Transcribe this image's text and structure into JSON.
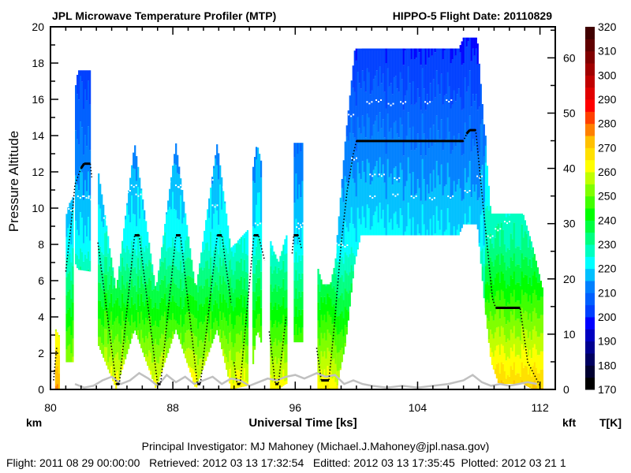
{
  "chart_data": {
    "type": "heatmap",
    "title": "JPL Microwave Temperature Profiler (MTP)",
    "subtitle": "HIPPO-5  Flight Date: 20110829",
    "xlabel": "Universal Time [ks]",
    "ylabel": "Pressure Altitude",
    "y_unit_label": "km",
    "y2_unit_label": "kft",
    "colorbar_label": "T[K]",
    "xlim": [
      80,
      113
    ],
    "ylim": [
      0,
      20
    ],
    "y2lim": [
      0,
      65.6
    ],
    "xticks": [
      "80",
      "88",
      "96",
      "104",
      "112"
    ],
    "yticks": [
      "0",
      "2",
      "4",
      "6",
      "8",
      "10",
      "12",
      "14",
      "16",
      "18",
      "20"
    ],
    "y2ticks": [
      "0",
      "10",
      "20",
      "30",
      "40",
      "50",
      "60"
    ],
    "colorbar": {
      "min": 170,
      "max": 320,
      "step": 5,
      "ticks": [
        "170",
        "180",
        "190",
        "200",
        "210",
        "220",
        "230",
        "240",
        "250",
        "260",
        "270",
        "280",
        "290",
        "300",
        "310",
        "320"
      ],
      "colors": [
        "#000000",
        "#000030",
        "#000060",
        "#000090",
        "#0000c0",
        "#0000ff",
        "#0040ff",
        "#0060ff",
        "#0080ff",
        "#00c0ff",
        "#00ffff",
        "#00ffc0",
        "#00ff80",
        "#00ff40",
        "#00ff00",
        "#40ff00",
        "#80ff00",
        "#c0ff00",
        "#ffff00",
        "#ffe000",
        "#ffc000",
        "#ff8000",
        "#ff4000",
        "#ff0000",
        "#e00000",
        "#c00000",
        "#a00000",
        "#800000",
        "#600000",
        "#400000"
      ]
    },
    "temperature_profile": {
      "altitude_km": [
        0,
        8,
        20
      ],
      "T_K": [
        262,
        222,
        198
      ]
    },
    "curtain_segments": [
      {
        "t": [
          80.3,
          80.55
        ],
        "bottom": [
          0,
          0
        ],
        "top": [
          3.4,
          3.0
        ],
        "T_surface_K": 276
      },
      {
        "t": [
          81.0,
          81.2,
          81.45
        ],
        "bottom": [
          1.5,
          1.5,
          1.5
        ],
        "top": [
          9.5,
          10.2,
          10.6
        ],
        "T_surface_K": 262
      },
      {
        "t": [
          81.6,
          81.8,
          82.6
        ],
        "bottom": [
          7.0,
          6.6,
          6.5
        ],
        "top": [
          16.5,
          17.6,
          17.6
        ],
        "T_surface_K": 262
      },
      {
        "t": [
          83.1,
          84.3,
          85.5,
          86.9,
          88.2,
          89.5,
          90.9,
          91.8
        ],
        "bottom": [
          2.5,
          0,
          3.3,
          0,
          3.3,
          0,
          3.3,
          0
        ],
        "top": [
          12.2,
          5.5,
          13.6,
          5.5,
          13.6,
          5.5,
          13.6,
          7.8
        ],
        "T_surface_K": 264
      },
      {
        "t": [
          91.8,
          92.9
        ],
        "bottom": [
          0,
          0.2
        ],
        "top": [
          7.8,
          8.8
        ],
        "T_surface_K": 264
      },
      {
        "t": [
          93.2,
          93.5,
          93.8
        ],
        "bottom": [
          1.0,
          3.3,
          2.5
        ],
        "top": [
          12.0,
          13.6,
          12.5
        ],
        "T_surface_K": 264
      },
      {
        "t": [
          94.35,
          94.9,
          95.4
        ],
        "bottom": [
          0,
          0,
          0.3
        ],
        "top": [
          8.3,
          7.0,
          8.5
        ],
        "T_surface_K": 264
      },
      {
        "t": [
          95.9,
          96.5
        ],
        "bottom": [
          2.6,
          2.6
        ],
        "top": [
          13.6,
          13.6
        ],
        "T_surface_K": 262
      },
      {
        "t": [
          97.45,
          97.8,
          98.3,
          98.7
        ],
        "bottom": [
          0,
          0,
          0,
          0
        ],
        "top": [
          6.8,
          5.8,
          5.8,
          7.5
        ],
        "T_surface_K": 264
      },
      {
        "t": [
          98.7,
          99.3,
          99.9,
          100.3,
          106.7,
          107.0,
          107.9,
          108.4
        ],
        "bottom": [
          0,
          2.5,
          7.0,
          8.5,
          8.5,
          9.1,
          9.1,
          4.5
        ],
        "top": [
          8.0,
          14.0,
          18.8,
          18.8,
          18.8,
          19.4,
          19.4,
          14.0
        ],
        "T_surface_K": 262
      },
      {
        "t": [
          108.4,
          108.8,
          109.3,
          110.9,
          111.5,
          112.2
        ],
        "bottom": [
          4.5,
          1.5,
          0.3,
          0.3,
          0,
          0
        ],
        "top": [
          14.0,
          9.7,
          9.7,
          9.7,
          8.0,
          5.5
        ],
        "T_surface_K": 270
      }
    ],
    "flight_altitude_km": [
      {
        "t": [
          80.2,
          80.4
        ],
        "km": [
          0.5,
          2.3
        ]
      },
      {
        "t": [
          81.0,
          81.4,
          81.6,
          82.0,
          82.2,
          82.6,
          82.7
        ],
        "km": [
          6.5,
          9.5,
          11.3,
          12.2,
          12.45,
          12.45,
          11.7
        ]
      },
      {
        "t": [
          83.1,
          84.3,
          84.5,
          85.5,
          85.8,
          87.0,
          87.2,
          88.2,
          88.5,
          89.6,
          89.8,
          90.9,
          91.2,
          91.8
        ],
        "km": [
          8.1,
          0.3,
          0.3,
          8.5,
          8.5,
          0.3,
          0.3,
          8.5,
          8.5,
          0.3,
          0.3,
          8.5,
          8.5,
          4.8
        ]
      },
      {
        "t": [
          92.0,
          92.2,
          92.4,
          93.3,
          93.6,
          94.0
        ],
        "km": [
          1.5,
          0.3,
          0.3,
          8.5,
          8.5,
          7.1
        ]
      },
      {
        "t": [
          94.3,
          94.7,
          94.9,
          95.4
        ],
        "km": [
          3.2,
          0.3,
          0.3,
          4.0
        ]
      },
      {
        "t": [
          95.8,
          95.9,
          96.2,
          96.4
        ],
        "km": [
          7.5,
          8.5,
          8.5,
          7.8
        ]
      },
      {
        "t": [
          97.4,
          97.7,
          98.2,
          98.5,
          99.0,
          99.4,
          99.8,
          100.0,
          107.0,
          107.2,
          107.4,
          107.8,
          108.3,
          108.9,
          109.1,
          110.7,
          111.2,
          112.0
        ],
        "km": [
          2.3,
          0.5,
          0.5,
          3.0,
          8.0,
          11.0,
          13.0,
          13.7,
          13.7,
          14.1,
          14.3,
          14.3,
          10.0,
          5.0,
          4.5,
          4.5,
          1.5,
          0.2
        ]
      }
    ],
    "tropopause_points": [
      [
        81.1,
        10.5
      ],
      [
        81.3,
        10.0
      ],
      [
        81.9,
        10.7
      ],
      [
        82.3,
        10.7
      ],
      [
        82.6,
        10.6
      ],
      [
        83.6,
        9.5
      ],
      [
        85.0,
        11.0
      ],
      [
        85.4,
        11.3
      ],
      [
        85.7,
        10.8
      ],
      [
        87.6,
        11.5
      ],
      [
        88.3,
        11.3
      ],
      [
        88.5,
        11.2
      ],
      [
        90.4,
        11.6
      ],
      [
        90.7,
        10.2
      ],
      [
        91.4,
        11.2
      ],
      [
        93.5,
        9.2
      ],
      [
        96.2,
        9.0
      ],
      [
        96.3,
        9.2
      ],
      [
        98.8,
        8.1
      ],
      [
        99.2,
        8.0
      ],
      [
        99.6,
        15.2
      ],
      [
        100.8,
        15.9
      ],
      [
        101.4,
        16.0
      ],
      [
        102.2,
        15.8
      ],
      [
        103.0,
        15.9
      ],
      [
        104.6,
        15.9
      ],
      [
        106.0,
        16.0
      ],
      [
        99.8,
        12.8
      ],
      [
        101.0,
        11.9
      ],
      [
        101.6,
        11.9
      ],
      [
        102.6,
        11.7
      ],
      [
        101.0,
        10.7
      ],
      [
        102.5,
        10.8
      ],
      [
        103.7,
        10.7
      ],
      [
        104.9,
        10.6
      ],
      [
        106.1,
        10.7
      ],
      [
        107.2,
        11.0
      ],
      [
        108.0,
        11.8
      ],
      [
        108.7,
        8.5
      ],
      [
        109.2,
        8.9
      ],
      [
        109.8,
        9.3
      ]
    ],
    "surface_line": {
      "t": [
        81.6,
        82.2,
        82.8,
        83.4,
        84.0,
        84.6,
        85.2,
        85.8,
        86.4,
        87.0,
        87.6,
        88.2,
        88.8,
        89.4,
        90.0,
        90.6,
        91.2,
        91.8,
        92.4,
        93.0,
        93.6,
        94.2,
        94.8,
        95.4,
        96.0,
        96.6,
        97.4,
        98.0,
        98.6,
        99.2,
        99.8,
        100.4,
        101.0,
        102.0,
        103.0,
        104.0,
        105.0,
        106.0,
        107.0,
        107.6,
        108.2,
        108.8,
        109.4,
        110.0,
        110.6,
        111.2,
        111.8
      ],
      "km": [
        0.3,
        0.1,
        0.2,
        0.5,
        0.7,
        0.3,
        0.5,
        0.9,
        0.6,
        0.2,
        0.8,
        0.4,
        0.7,
        0.3,
        0.5,
        0.7,
        0.3,
        0.6,
        0.5,
        0.2,
        0.4,
        0.6,
        0.5,
        0.7,
        0.8,
        0.6,
        0.9,
        0.7,
        0.8,
        0.3,
        0.5,
        0.3,
        0.2,
        0.1,
        0.2,
        0.1,
        0.2,
        0.3,
        0.5,
        0.8,
        0.4,
        0.2,
        0.3,
        0.2,
        0.3,
        0.4,
        0.3
      ]
    }
  },
  "footer": {
    "investigator": "Principal Investigator: MJ Mahoney (Michael.J.Mahoney@jpl.nasa.gov)",
    "dates": "Flight: 2011 08 29 00:00:00   Retrieved: 2012 03 13 17:32:54   Editted: 2012 03 13 17:35:45  Plotted: 2012 03 21 1"
  }
}
